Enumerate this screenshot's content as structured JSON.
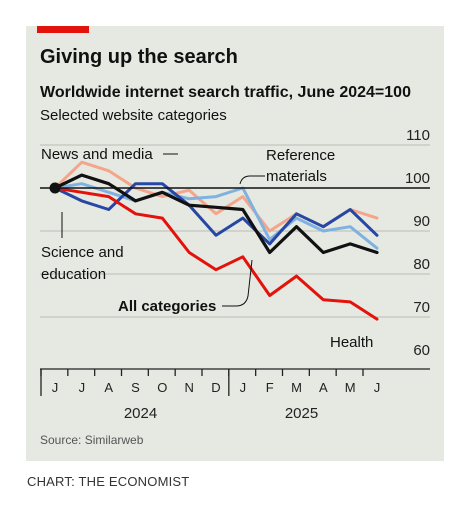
{
  "header": {
    "title": "Giving up the search",
    "subtitle": "Worldwide internet search traffic, June 2024=100",
    "subsubtitle": "Selected website categories"
  },
  "footer": {
    "source": "Source: Similarweb",
    "credit": "CHART: THE ECONOMIST"
  },
  "chart_data": {
    "type": "line",
    "title": "Giving up the search",
    "subtitle": "Worldwide internet search traffic, June 2024=100",
    "ylim": [
      60,
      110
    ],
    "yticks": [
      110,
      100,
      90,
      80,
      70,
      60
    ],
    "baseline": 100,
    "x_month_labels": [
      "J",
      "J",
      "A",
      "S",
      "O",
      "N",
      "D",
      "J",
      "F",
      "M",
      "A",
      "M",
      "J"
    ],
    "year_labels": [
      {
        "label": "2024",
        "month_index": 3
      },
      {
        "label": "2025",
        "month_index": 9
      }
    ],
    "colors": {
      "news": "#f4a58a",
      "reference": "#7fb2e0",
      "science": "#2647a4",
      "all": "#111111",
      "health": "#e3120b",
      "baseline": "#111111",
      "grid": "#b9bdb4"
    },
    "series": [
      {
        "key": "news",
        "name": "News and media",
        "values": [
          100,
          106,
          104,
          100,
          98,
          99.5,
          94,
          98,
          90,
          94,
          91,
          95,
          93
        ]
      },
      {
        "key": "reference",
        "name": "Reference materials",
        "values": [
          100,
          101,
          99,
          97,
          99,
          97.5,
          98,
          100,
          88,
          93,
          90,
          91,
          86
        ]
      },
      {
        "key": "science",
        "name": "Science and education",
        "values": [
          100,
          97,
          95,
          101,
          101,
          96,
          89,
          93,
          87,
          94,
          91,
          95,
          89
        ]
      },
      {
        "key": "all",
        "name": "All categories",
        "values": [
          100,
          103,
          101,
          97,
          99,
          96,
          95.5,
          95,
          85,
          91,
          85,
          87,
          85
        ]
      },
      {
        "key": "health",
        "name": "Health",
        "values": [
          100,
          99,
          98,
          94,
          93,
          85,
          81,
          84,
          75,
          79.5,
          74,
          73.5,
          69.5
        ]
      }
    ],
    "labels": {
      "news": "News and media",
      "reference_line1": "Reference",
      "reference_line2": "materials",
      "science_line1": "Science and",
      "science_line2": "education",
      "all": "All categories",
      "health": "Health"
    }
  }
}
